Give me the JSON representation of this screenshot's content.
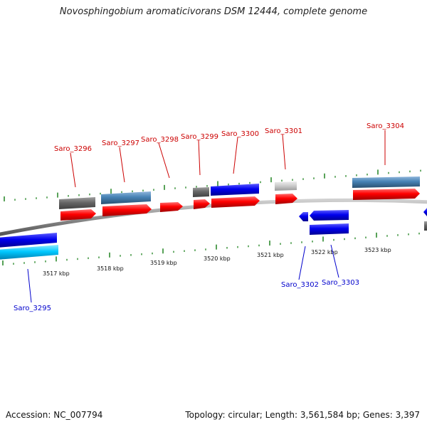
{
  "title": "Novosphingobium aromaticivorans DSM 12444, complete genome",
  "footer": {
    "accession": "Accession: NC_007794",
    "topology": "Topology: circular; Length: 3,561,584 bp; Genes: 3,397"
  },
  "colors": {
    "forward_label": "#cc0000",
    "reverse_label": "#0000cc",
    "tick": "#2e8b2e",
    "cds_forward": "#ff0000",
    "cds_reverse": "#0000ee",
    "cds_light_blue": "#00c8ff",
    "steel_blue": "#4682b4",
    "gray": "#666666",
    "light_gray": "#c8c8c8",
    "backbone": "#888888"
  },
  "kbp_labels": [
    "3517 kbp",
    "3518 kbp",
    "3519 kbp",
    "3520 kbp",
    "3521 kbp",
    "3522 kbp",
    "3523 kbp"
  ],
  "genes_forward": [
    "Saro_3296",
    "Saro_3297",
    "Saro_3298",
    "Saro_3299",
    "Saro_3300",
    "Saro_3301",
    "Saro_3304"
  ],
  "genes_reverse": [
    "Saro_3295",
    "Saro_3302",
    "Saro_3303"
  ]
}
